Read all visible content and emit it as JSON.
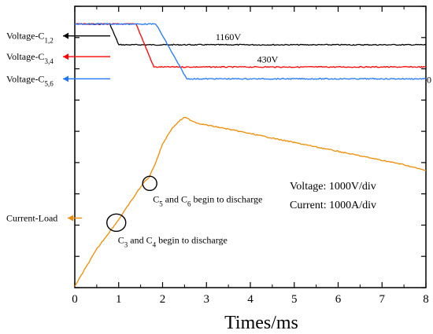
{
  "chart_data": {
    "type": "line",
    "xlabel": "Times/ms",
    "x_ticks": [
      0,
      1,
      2,
      3,
      4,
      5,
      6,
      7,
      8
    ],
    "xlim": [
      0,
      8
    ],
    "y_unit_note": "oscilloscope traces, y in arbitrary divisions",
    "series": [
      {
        "name": "Voltage-C1,2",
        "name_parts": [
          "Voltage-C",
          "1,2"
        ],
        "color": "#000000",
        "points": [
          [
            0,
            8.9
          ],
          [
            0.8,
            8.9
          ],
          [
            1.0,
            8.2
          ],
          [
            8,
            8.2
          ]
        ],
        "level_label": "1160V"
      },
      {
        "name": "Voltage-C3,4",
        "name_parts": [
          "Voltage-C",
          "3,4"
        ],
        "color": "#ff0000",
        "points": [
          [
            0,
            8.9
          ],
          [
            1.4,
            8.9
          ],
          [
            1.8,
            7.45
          ],
          [
            8,
            7.45
          ]
        ],
        "level_label": "430V"
      },
      {
        "name": "Voltage-C5,6",
        "name_parts": [
          "Voltage-C",
          "5,6"
        ],
        "color": "#1f77ff",
        "points": [
          [
            0,
            8.9
          ],
          [
            1.85,
            8.9
          ],
          [
            2.55,
            7.05
          ],
          [
            8,
            7.05
          ]
        ],
        "level_label": "0"
      },
      {
        "name": "Current-Load",
        "name_parts": [
          "Current-Load",
          ""
        ],
        "color": "#f08c00",
        "points": [
          [
            0,
            0.05
          ],
          [
            0.5,
            1.3
          ],
          [
            1.0,
            2.3
          ],
          [
            1.5,
            3.4
          ],
          [
            1.6,
            3.6
          ],
          [
            1.65,
            3.65
          ],
          [
            1.7,
            3.75
          ],
          [
            1.85,
            4.25
          ],
          [
            2.0,
            4.85
          ],
          [
            2.2,
            5.35
          ],
          [
            2.4,
            5.65
          ],
          [
            2.5,
            5.75
          ],
          [
            2.8,
            5.55
          ],
          [
            3.5,
            5.35
          ],
          [
            4.5,
            5.05
          ],
          [
            5.5,
            4.75
          ],
          [
            6.5,
            4.45
          ],
          [
            7.5,
            4.15
          ],
          [
            8.0,
            3.95
          ]
        ]
      }
    ],
    "annotations": [
      {
        "text_parts": [
          "C",
          "5",
          " and C",
          "6",
          " begin to discharge"
        ],
        "x": 1.6,
        "y": 3.6
      },
      {
        "text_parts": [
          "C",
          "3",
          " and C",
          "4",
          " begin to discharge"
        ],
        "x": 1.0,
        "y": 2.3
      }
    ],
    "scale_text": [
      "Voltage: 1000V/div",
      "Current: 1000A/div"
    ]
  }
}
